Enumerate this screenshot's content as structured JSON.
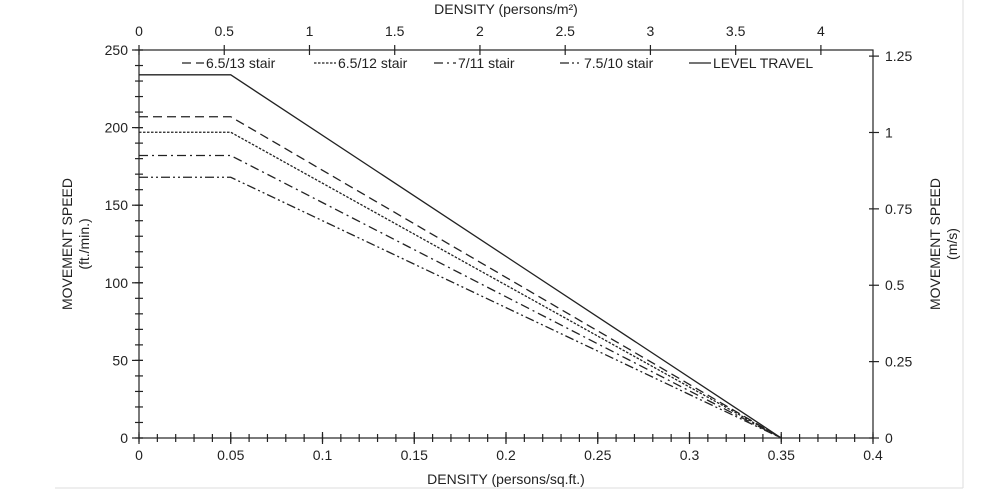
{
  "chart_data": {
    "type": "line",
    "title": "",
    "xlabel": "DENSITY (persons/sq.ft.)",
    "x2label": "DENSITY (persons/m²)",
    "ylabel": "MOVEMENT SPEED",
    "ylabel_unit": "(ft./min.)",
    "y2label": "MOVEMENT SPEED",
    "y2label_unit": "(m/s)",
    "xlim": [
      0,
      0.4
    ],
    "ylim": [
      0,
      250
    ],
    "x2lim": [
      0,
      4.3056
    ],
    "y2lim": [
      0,
      1.27
    ],
    "x_ticks": [
      "0",
      "0.05",
      "0.1",
      "0.15",
      "0.2",
      "0.25",
      "0.3",
      "0.35",
      "0.4"
    ],
    "x2_ticks": [
      "0",
      "0.5",
      "1",
      "1.5",
      "2",
      "2.5",
      "3",
      "3.5",
      "4"
    ],
    "y_ticks": [
      "0",
      "50",
      "100",
      "150",
      "200",
      "250"
    ],
    "y2_ticks": [
      "0",
      "0.25",
      "0.5",
      "0.75",
      "1",
      "1.25"
    ],
    "legend_position": "top",
    "grid": false,
    "series": [
      {
        "name": "6.5/13 stair",
        "dash": "dashed",
        "x": [
          0,
          0.05,
          0.35
        ],
        "y": [
          207,
          207,
          0
        ]
      },
      {
        "name": "6.5/12 stair",
        "dash": "dotted",
        "x": [
          0,
          0.05,
          0.35
        ],
        "y": [
          197,
          197,
          0
        ]
      },
      {
        "name": "7/11 stair",
        "dash": "dash-dot",
        "x": [
          0,
          0.05,
          0.35
        ],
        "y": [
          182,
          182,
          0
        ]
      },
      {
        "name": "7.5/10 stair",
        "dash": "dash-dot-dot",
        "x": [
          0,
          0.05,
          0.35
        ],
        "y": [
          168,
          168,
          0
        ]
      },
      {
        "name": "LEVEL TRAVEL",
        "dash": "solid",
        "x": [
          0,
          0.05,
          0.35
        ],
        "y": [
          234,
          234,
          0
        ]
      }
    ]
  }
}
